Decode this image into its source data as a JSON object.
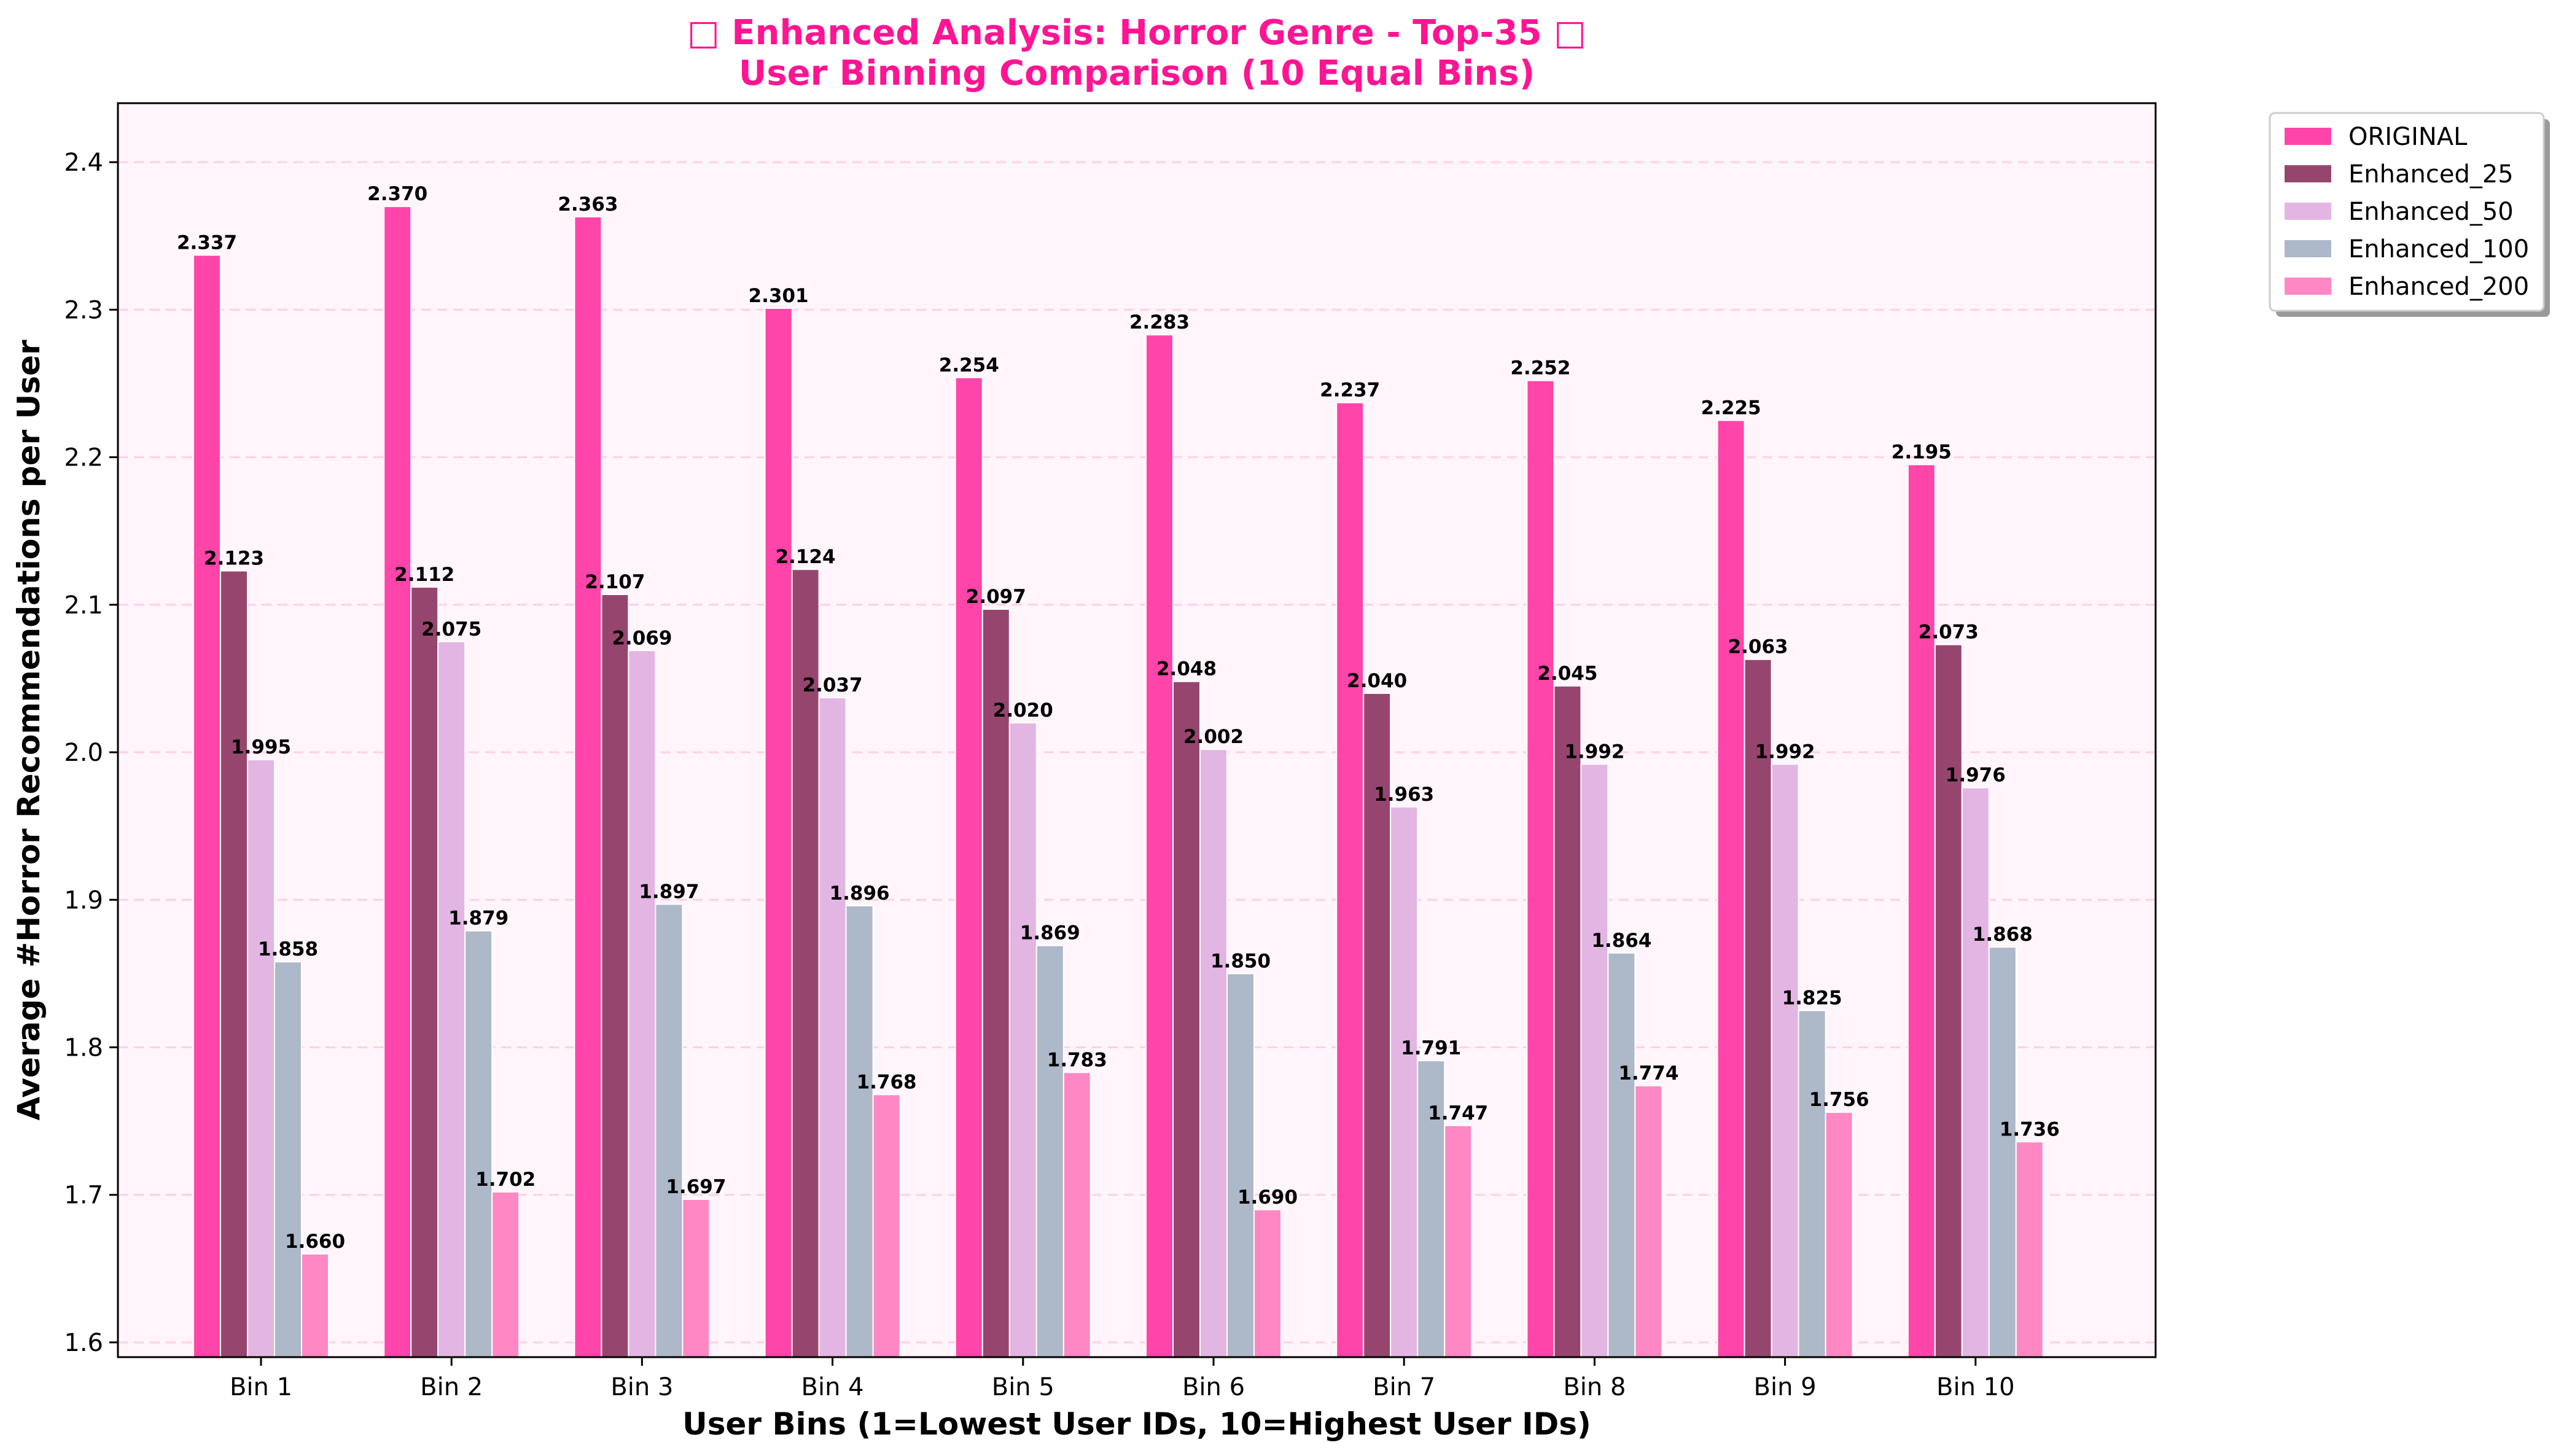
{
  "chart_data": {
    "type": "bar",
    "title_line1": "□ Enhanced Analysis: Horror Genre - Top-35 □",
    "title_line2": "User Binning Comparison (10 Equal Bins)",
    "xlabel": "User Bins (1=Lowest User IDs, 10=Highest User IDs)",
    "ylabel": "Average #Horror Recommendations per User",
    "ylim": [
      1.59,
      2.44
    ],
    "yticks": [
      "1.6",
      "1.7",
      "1.8",
      "1.9",
      "2.0",
      "2.1",
      "2.2",
      "2.3",
      "2.4"
    ],
    "grid": "horizontal dashed",
    "legend_position": "outside top-right",
    "plot_background": "#fff5fb",
    "categories": [
      "Bin 1",
      "Bin 2",
      "Bin 3",
      "Bin 4",
      "Bin 5",
      "Bin 6",
      "Bin 7",
      "Bin 8",
      "Bin 9",
      "Bin 10"
    ],
    "series": [
      {
        "name": "ORIGINAL",
        "color": "#ff44aa",
        "values": [
          2.337,
          2.37,
          2.363,
          2.301,
          2.254,
          2.283,
          2.237,
          2.252,
          2.225,
          2.195
        ],
        "labels": [
          "2.337",
          "2.370",
          "2.363",
          "2.301",
          "2.254",
          "2.283",
          "2.237",
          "2.252",
          "2.225",
          "2.195"
        ]
      },
      {
        "name": "Enhanced_25",
        "color": "#96466e",
        "values": [
          2.123,
          2.112,
          2.107,
          2.124,
          2.097,
          2.048,
          2.04,
          2.045,
          2.063,
          2.073
        ],
        "labels": [
          "2.123",
          "2.112",
          "2.107",
          "2.124",
          "2.097",
          "2.048",
          "2.040",
          "2.045",
          "2.063",
          "2.073"
        ]
      },
      {
        "name": "Enhanced_50",
        "color": "#e3b5e3",
        "values": [
          1.995,
          2.075,
          2.069,
          2.037,
          2.02,
          2.002,
          1.963,
          1.992,
          1.992,
          1.976
        ],
        "labels": [
          "1.995",
          "2.075",
          "2.069",
          "2.037",
          "2.020",
          "2.002",
          "1.963",
          "1.992",
          "1.992",
          "1.976"
        ]
      },
      {
        "name": "Enhanced_100",
        "color": "#adb8c8",
        "values": [
          1.858,
          1.879,
          1.897,
          1.896,
          1.869,
          1.85,
          1.791,
          1.864,
          1.825,
          1.868
        ],
        "labels": [
          "1.858",
          "1.879",
          "1.897",
          "1.896",
          "1.869",
          "1.850",
          "1.791",
          "1.864",
          "1.825",
          "1.868"
        ]
      },
      {
        "name": "Enhanced_200",
        "color": "#ff88c4",
        "values": [
          1.66,
          1.702,
          1.697,
          1.768,
          1.783,
          1.69,
          1.747,
          1.774,
          1.756,
          1.736
        ],
        "labels": [
          "1.660",
          "1.702",
          "1.697",
          "1.768",
          "1.783",
          "1.690",
          "1.747",
          "1.774",
          "1.756",
          "1.736"
        ]
      }
    ]
  }
}
